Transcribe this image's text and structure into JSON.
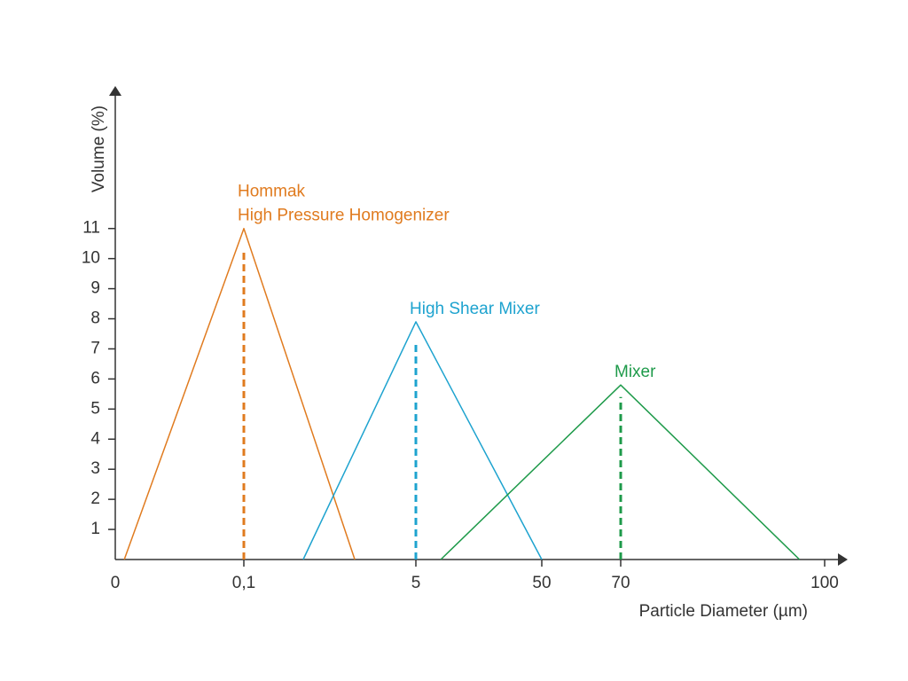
{
  "chart_data": {
    "type": "line",
    "xlabel": "Particle Diameter (µm)",
    "ylabel": "Volume (%)",
    "xlim": [
      0,
      100
    ],
    "xticks": [
      0,
      {
        "value": 0.1,
        "label": "0,1"
      },
      5,
      50,
      70,
      100
    ],
    "ylim": [
      0,
      15.5
    ],
    "yticks": [
      1,
      2,
      3,
      4,
      5,
      6,
      7,
      8,
      9,
      10,
      11
    ],
    "series": [
      {
        "name": "Hommak\nHigh Pressure Homogenizer",
        "color": "#e07b1f",
        "x": [
          0.007,
          0.1,
          3.26
        ],
        "values": [
          0,
          11,
          0
        ],
        "peak": {
          "x": 0.1,
          "y": 10.3
        }
      },
      {
        "name": "High Shear Mixer",
        "color": "#1ea3cf",
        "x": [
          1.79,
          5,
          50
        ],
        "values": [
          0,
          7.9,
          0
        ],
        "peak": {
          "x": 5,
          "y": 7.2
        }
      },
      {
        "name": "Mixer",
        "color": "#1e9a4a",
        "x": [
          13.9,
          70,
          96.3
        ],
        "values": [
          0,
          5.8,
          0
        ],
        "peak": {
          "x": 70,
          "y": 5.4
        }
      }
    ]
  }
}
